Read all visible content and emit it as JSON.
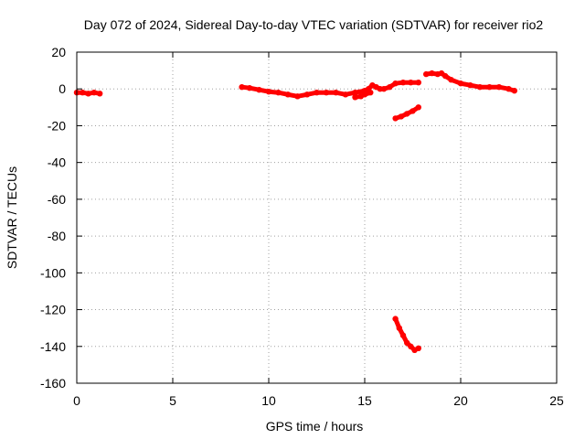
{
  "chart_data": {
    "type": "scatter",
    "title": "Day 072 of 2024, Sidereal Day-to-day VTEC variation (SDTVAR) for receiver rio2",
    "xlabel": "GPS time / hours",
    "ylabel": "SDTVAR / TECUs",
    "xlim": [
      0,
      25
    ],
    "ylim": [
      -160,
      20
    ],
    "xticks": [
      0,
      5,
      10,
      15,
      20,
      25
    ],
    "yticks": [
      20,
      0,
      -20,
      -40,
      -60,
      -80,
      -100,
      -120,
      -140,
      -160
    ],
    "grid": true,
    "series_color": "#ff0000",
    "series": [
      {
        "name": "arc-1",
        "points": [
          [
            0.0,
            -2
          ],
          [
            0.3,
            -2
          ],
          [
            0.6,
            -2.5
          ],
          [
            0.9,
            -2
          ],
          [
            1.2,
            -2.5
          ]
        ]
      },
      {
        "name": "arc-2",
        "points": [
          [
            8.6,
            1
          ],
          [
            9.0,
            0.5
          ],
          [
            9.5,
            -0.5
          ],
          [
            10.0,
            -1.5
          ],
          [
            10.5,
            -2
          ],
          [
            11.0,
            -3
          ],
          [
            11.5,
            -4
          ],
          [
            12.0,
            -3
          ],
          [
            12.5,
            -2
          ],
          [
            13.0,
            -2
          ],
          [
            13.5,
            -2
          ],
          [
            14.0,
            -3
          ],
          [
            14.5,
            -2
          ],
          [
            15.0,
            -1
          ],
          [
            15.2,
            0
          ],
          [
            15.4,
            2
          ],
          [
            15.6,
            1
          ],
          [
            15.8,
            0
          ],
          [
            16.0,
            0
          ],
          [
            16.3,
            1
          ],
          [
            16.6,
            3
          ],
          [
            17.0,
            3.5
          ],
          [
            17.4,
            3.5
          ],
          [
            17.8,
            3.5
          ]
        ]
      },
      {
        "name": "arc-3",
        "points": [
          [
            14.5,
            -4.5
          ],
          [
            14.8,
            -4
          ],
          [
            15.0,
            -3
          ],
          [
            15.3,
            -2
          ]
        ]
      },
      {
        "name": "arc-4",
        "points": [
          [
            16.6,
            -16
          ],
          [
            16.9,
            -15
          ],
          [
            17.2,
            -13.5
          ],
          [
            17.5,
            -12
          ],
          [
            17.8,
            -10
          ]
        ]
      },
      {
        "name": "arc-5",
        "points": [
          [
            16.6,
            -125
          ],
          [
            16.8,
            -130
          ],
          [
            17.0,
            -134
          ],
          [
            17.2,
            -138
          ],
          [
            17.4,
            -140
          ],
          [
            17.6,
            -142
          ],
          [
            17.8,
            -141
          ]
        ]
      },
      {
        "name": "arc-6",
        "points": [
          [
            18.2,
            8
          ],
          [
            18.5,
            8.5
          ],
          [
            18.8,
            8
          ],
          [
            19.0,
            8.5
          ],
          [
            19.2,
            7
          ],
          [
            19.5,
            5
          ],
          [
            20.0,
            3
          ],
          [
            20.5,
            2
          ],
          [
            21.0,
            1
          ],
          [
            21.5,
            1
          ],
          [
            22.0,
            1
          ],
          [
            22.5,
            0
          ],
          [
            22.8,
            -1
          ]
        ]
      }
    ]
  }
}
